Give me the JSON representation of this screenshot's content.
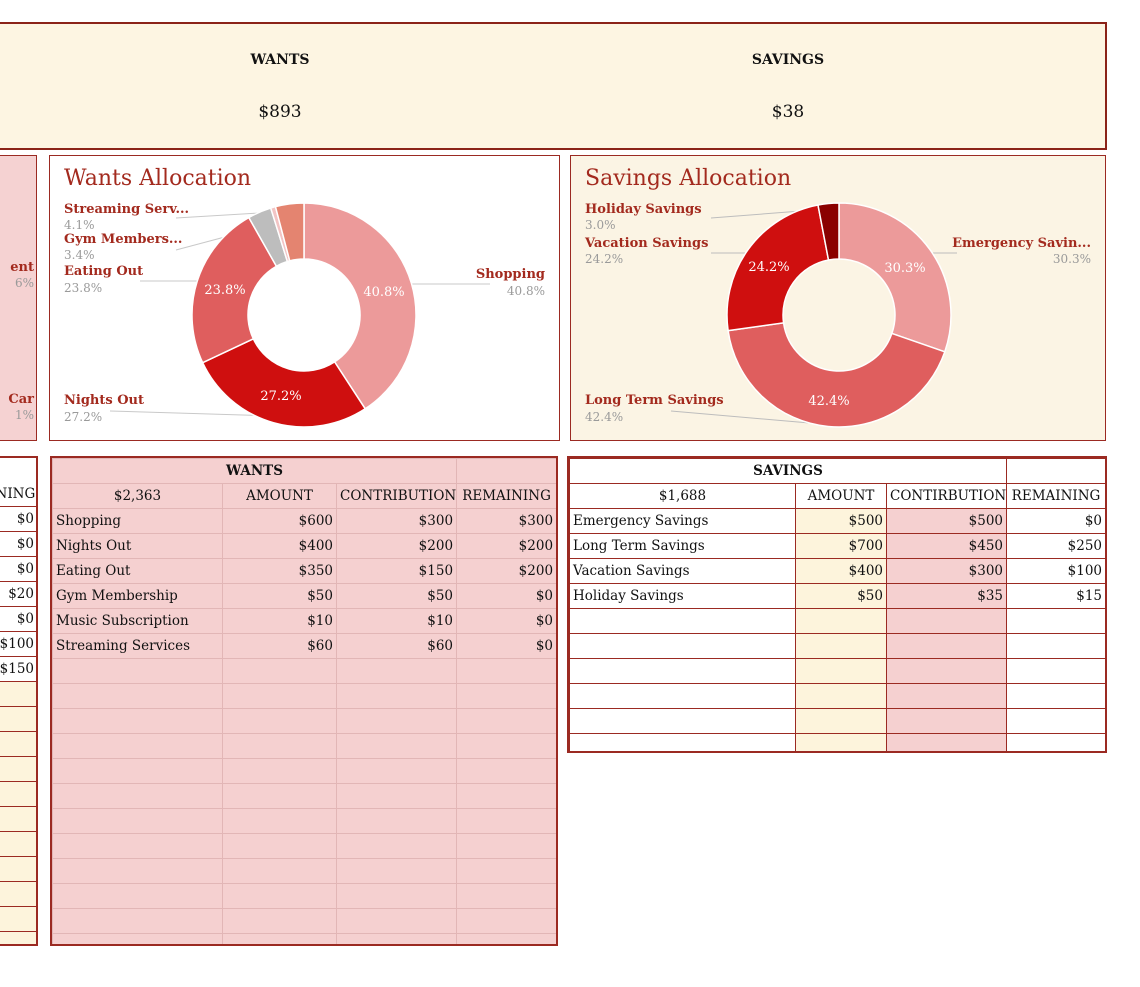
{
  "summary": {
    "wants_label": "WANTS",
    "wants_value": "$893",
    "savings_label": "SAVINGS",
    "savings_value": "$38"
  },
  "left_edge": {
    "chart_labels": [
      "ent",
      "6%",
      "Car",
      "1%"
    ],
    "table_header": "NING",
    "values": [
      "$0",
      "$0",
      "$0",
      "$20",
      "$0",
      "$100",
      "$150"
    ]
  },
  "wants_chart": {
    "title": "Wants Allocation",
    "colors": [
      "#ec9a9a",
      "#cf0f0f",
      "#df5e5e",
      "#bdbdbd",
      "#f2c4c4",
      "#e48470"
    ],
    "labels": [
      {
        "name": "Streaming Serv...",
        "pct": "4.1%"
      },
      {
        "name": "Gym Members...",
        "pct": "3.4%"
      },
      {
        "name": "Eating Out",
        "pct": "23.8%"
      },
      {
        "name": "Nights Out",
        "pct": "27.2%"
      },
      {
        "name": "Shopping",
        "pct": "40.8%"
      }
    ],
    "inner_labels": [
      "23.8%",
      "40.8%",
      "27.2%"
    ]
  },
  "savings_chart": {
    "title": "Savings Allocation",
    "colors": [
      "#ec9a9a",
      "#df5e5e",
      "#cf0f0f",
      "#8a0000"
    ],
    "labels": [
      {
        "name": "Holiday Savings",
        "pct": "3.0%"
      },
      {
        "name": "Vacation Savings",
        "pct": "24.2%"
      },
      {
        "name": "Emergency Savin...",
        "pct": "30.3%"
      },
      {
        "name": "Long Term Savings",
        "pct": "42.4%"
      }
    ],
    "inner_labels": [
      "24.2%",
      "30.3%",
      "42.4%"
    ]
  },
  "chart_data": [
    {
      "type": "pie",
      "title": "Wants Allocation",
      "categories": [
        "Shopping",
        "Nights Out",
        "Eating Out",
        "Gym Membership",
        "Music Subscription",
        "Streaming Services"
      ],
      "values": [
        40.8,
        27.2,
        23.8,
        3.4,
        0.7,
        4.1
      ]
    },
    {
      "type": "pie",
      "title": "Savings Allocation",
      "categories": [
        "Emergency Savings",
        "Long Term Savings",
        "Vacation Savings",
        "Holiday Savings"
      ],
      "values": [
        30.3,
        42.4,
        24.2,
        3.0
      ]
    }
  ],
  "wants_table": {
    "title": "WANTS",
    "total": "$2,363",
    "columns": [
      "AMOUNT",
      "CONTRIBUTION",
      "REMAINING"
    ],
    "rows": [
      {
        "name": "Shopping",
        "amount": "$600",
        "contribution": "$300",
        "remaining": "$300"
      },
      {
        "name": "Nights Out",
        "amount": "$400",
        "contribution": "$200",
        "remaining": "$200"
      },
      {
        "name": "Eating Out",
        "amount": "$350",
        "contribution": "$150",
        "remaining": "$200"
      },
      {
        "name": "Gym Membership",
        "amount": "$50",
        "contribution": "$50",
        "remaining": "$0"
      },
      {
        "name": "Music Subscription",
        "amount": "$10",
        "contribution": "$10",
        "remaining": "$0"
      },
      {
        "name": "Streaming Services",
        "amount": "$60",
        "contribution": "$60",
        "remaining": "$0"
      }
    ]
  },
  "savings_table": {
    "title": "SAVINGS",
    "total": "$1,688",
    "columns": [
      "AMOUNT",
      "CONTIRBUTION",
      "REMAINING"
    ],
    "rows": [
      {
        "name": "Emergency Savings",
        "amount": "$500",
        "contribution": "$500",
        "remaining": "$0"
      },
      {
        "name": "Long Term Savings",
        "amount": "$700",
        "contribution": "$450",
        "remaining": "$250"
      },
      {
        "name": "Vacation Savings",
        "amount": "$400",
        "contribution": "$300",
        "remaining": "$100"
      },
      {
        "name": "Holiday Savings",
        "amount": "$50",
        "contribution": "$35",
        "remaining": "$15"
      }
    ]
  }
}
